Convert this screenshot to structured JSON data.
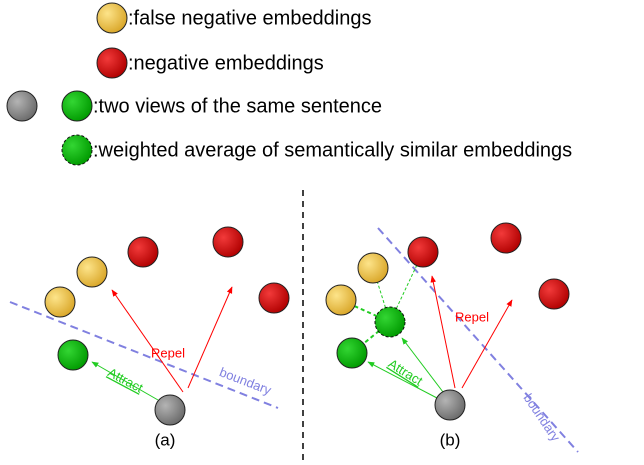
{
  "legend": [
    {
      "text": ":false negative embeddings"
    },
    {
      "text": ":negative embeddings"
    },
    {
      "text": ":two views of the same sentence"
    },
    {
      "text": ":weighted average of semantically similar embeddings"
    }
  ],
  "panels": [
    {
      "caption": "(a)",
      "repel": "Repel",
      "attract": "Attract",
      "boundary": "boundary"
    },
    {
      "caption": "(b)",
      "repel": "Repel",
      "attract": "Attract",
      "boundary": "boundary"
    }
  ]
}
